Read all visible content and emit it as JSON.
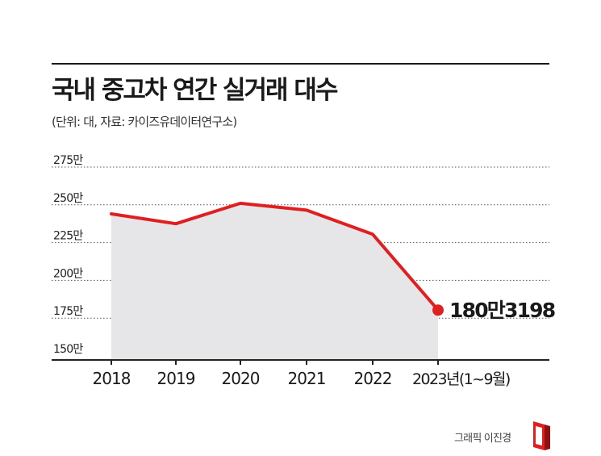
{
  "title": "국내 중고차 연간 실거래 대수",
  "subtitle": "(단위: 대, 자료: 카이즈유데이터연구소)",
  "credit": "그래픽 이진경",
  "colors": {
    "line": "#e02020",
    "area": "#e6e6e8",
    "grid": "#555555",
    "axis": "#222222"
  },
  "chart_data": {
    "type": "area",
    "x": [
      "2018",
      "2019",
      "2020",
      "2021",
      "2022",
      "2023년(1~9월)"
    ],
    "values": [
      2440000,
      2375000,
      2510000,
      2465000,
      2305000,
      1803198
    ],
    "y_ticks": [
      {
        "value": 2750000,
        "label": "275만"
      },
      {
        "value": 2500000,
        "label": "250만"
      },
      {
        "value": 2250000,
        "label": "225만"
      },
      {
        "value": 2000000,
        "label": "200만"
      },
      {
        "value": 1750000,
        "label": "175만"
      },
      {
        "value": 1500000,
        "label": "150만"
      }
    ],
    "ylim": [
      1500000,
      2750000
    ],
    "grid": true,
    "annotation": {
      "index": 5,
      "text": "180만3198"
    }
  }
}
